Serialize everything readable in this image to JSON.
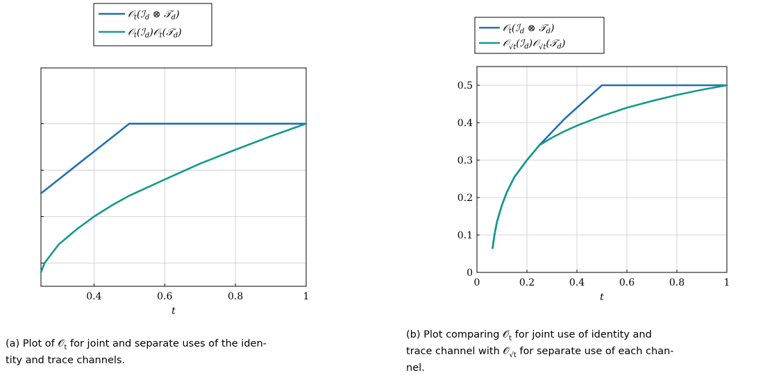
{
  "chart_data": [
    {
      "type": "line",
      "xlabel": "t",
      "ylabel": "",
      "xlim": [
        0.25,
        1
      ],
      "ylim": [
        0.15,
        0.62
      ],
      "xticks": [
        0.4,
        0.6,
        0.8,
        1
      ],
      "xtick_labels": [
        "0.4",
        "0.6",
        "0.8",
        "1"
      ],
      "yticks": [
        0.2,
        0.3,
        0.4,
        0.5
      ],
      "ytick_labels": [
        "",
        "",
        "",
        ""
      ],
      "grid": true,
      "legend_position": "top",
      "series": [
        {
          "name": "O_t(I_d ⊗ T_d)",
          "color": "#1f6fb4",
          "x": [
            0.25,
            0.3,
            0.35,
            0.4,
            0.45,
            0.5,
            0.6,
            0.7,
            0.8,
            0.9,
            1.0
          ],
          "y": [
            0.35,
            0.38,
            0.41,
            0.44,
            0.47,
            0.5,
            0.5,
            0.5,
            0.5,
            0.5,
            0.5
          ]
        },
        {
          "name": "O_t(I_d)O_t(T_d)",
          "color": "#11998e",
          "x": [
            0.25,
            0.26,
            0.28,
            0.3,
            0.35,
            0.4,
            0.45,
            0.5,
            0.6,
            0.7,
            0.8,
            0.9,
            1.0
          ],
          "y": [
            0.18,
            0.2,
            0.22,
            0.24,
            0.272,
            0.3,
            0.324,
            0.345,
            0.38,
            0.414,
            0.444,
            0.473,
            0.5
          ]
        }
      ]
    },
    {
      "type": "line",
      "xlabel": "t",
      "ylabel": "",
      "xlim": [
        0,
        1
      ],
      "ylim": [
        0,
        0.55
      ],
      "xticks": [
        0,
        0.2,
        0.4,
        0.6,
        0.8,
        1
      ],
      "xtick_labels": [
        "0",
        "0.2",
        "0.4",
        "0.6",
        "0.8",
        "1"
      ],
      "yticks": [
        0,
        0.1,
        0.2,
        0.3,
        0.4,
        0.5
      ],
      "ytick_labels": [
        "0",
        "0.1",
        "0.2",
        "0.3",
        "0.4",
        "0.5"
      ],
      "grid": true,
      "legend_position": "top",
      "series": [
        {
          "name": "O_t(I_d ⊗ T_d)",
          "color": "#1f6fb4",
          "x": [
            0.0625,
            0.07,
            0.08,
            0.1,
            0.12,
            0.15,
            0.2,
            0.25,
            0.3,
            0.35,
            0.4,
            0.45,
            0.5,
            0.6,
            0.7,
            0.8,
            0.9,
            1.0
          ],
          "y": [
            0.065,
            0.1,
            0.135,
            0.18,
            0.215,
            0.255,
            0.3,
            0.34,
            0.375,
            0.41,
            0.44,
            0.47,
            0.5,
            0.5,
            0.5,
            0.5,
            0.5,
            0.5
          ]
        },
        {
          "name": "O_√t(I_d)O_√t(T_d)",
          "color": "#11998e",
          "x": [
            0.0625,
            0.07,
            0.08,
            0.1,
            0.12,
            0.15,
            0.2,
            0.25,
            0.3,
            0.35,
            0.4,
            0.5,
            0.6,
            0.7,
            0.8,
            0.9,
            1.0
          ],
          "y": [
            0.065,
            0.1,
            0.135,
            0.18,
            0.215,
            0.255,
            0.3,
            0.34,
            0.36,
            0.377,
            0.392,
            0.418,
            0.44,
            0.458,
            0.474,
            0.488,
            0.5
          ]
        }
      ]
    }
  ],
  "captions": {
    "a_line1": "(a) Plot of 𝒪",
    "a_sub1": "t",
    "a_line1_rest": " for joint and separate uses of the iden-",
    "a_line2": "tity and trace channels.",
    "b_line1": "(b) Plot comparing 𝒪",
    "b_sub1": "t",
    "b_line1_rest": " for joint use of identity and",
    "b_line2_pre": "trace channel with 𝒪",
    "b_sub2": "√t",
    "b_line2_rest": " for separate use of each chan-",
    "b_line3": "nel."
  },
  "legend_a": {
    "item1_O": "𝒪",
    "item1_sub": "t",
    "item1_rest": "(ℐ",
    "item1_d1": "d",
    "item1_mid": " ⊗ 𝒯",
    "item1_d2": "d",
    "item1_end": ")",
    "item2_O": "𝒪",
    "item2_sub": "t",
    "item2_rest": "(ℐ",
    "item2_d1": "d",
    "item2_mid": ")𝒪",
    "item2_sub2": "t",
    "item2_mid2": "(𝒯",
    "item2_d2": "d",
    "item2_end": ")"
  },
  "legend_b": {
    "item1_O": "𝒪",
    "item1_sub": "t",
    "item1_rest": "(ℐ",
    "item1_d1": "d",
    "item1_mid": " ⊗ 𝒯",
    "item1_d2": "d",
    "item1_end": ")",
    "item2_O": "𝒪",
    "item2_sub": "√t",
    "item2_rest": "(ℐ",
    "item2_d1": "d",
    "item2_mid": ")𝒪",
    "item2_sub2": "√t",
    "item2_mid2": "(𝒯",
    "item2_d2": "d",
    "item2_end": ")"
  }
}
